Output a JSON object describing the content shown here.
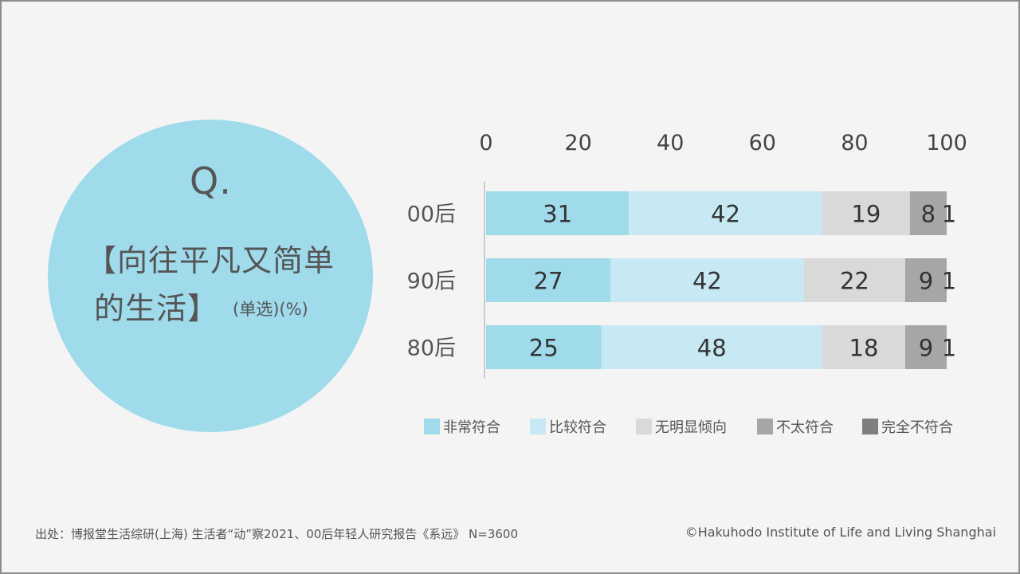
{
  "question": {
    "mark": "Q.",
    "line1": "【向往平凡又简单",
    "line2": "的生活】",
    "note": "(单选)(%)"
  },
  "chart_data": {
    "type": "bar",
    "orientation": "horizontal",
    "stacked": true,
    "unit": "%",
    "categories": [
      "00后",
      "90后",
      "80后"
    ],
    "xlim": [
      0,
      100
    ],
    "x_ticks": [
      "0",
      "20",
      "40",
      "60",
      "80",
      "100"
    ],
    "x_axis_position": "top",
    "grid": false,
    "legend_position": "bottom",
    "series": [
      {
        "name": "非常符合",
        "color": "#9fdbeb",
        "values": [
          31,
          27,
          25
        ]
      },
      {
        "name": "比较符合",
        "color": "#c6e9f3",
        "values": [
          42,
          42,
          48
        ]
      },
      {
        "name": "无明显倾向",
        "color": "#d9d9d9",
        "values": [
          19,
          22,
          18
        ]
      },
      {
        "name": "不太符合",
        "color": "#a6a6a6",
        "values": [
          8,
          9,
          9
        ]
      },
      {
        "name": "完全不符合",
        "color": "#7f7f7f",
        "values": [
          1,
          1,
          1
        ]
      }
    ]
  },
  "footer": {
    "source": "出处：博报堂生活综研(上海) 生活者“动”察2021、00后年轻人研究报告《系远》 N=3600",
    "copyright": "©Hakuhodo Institute of Life and Living Shanghai"
  }
}
